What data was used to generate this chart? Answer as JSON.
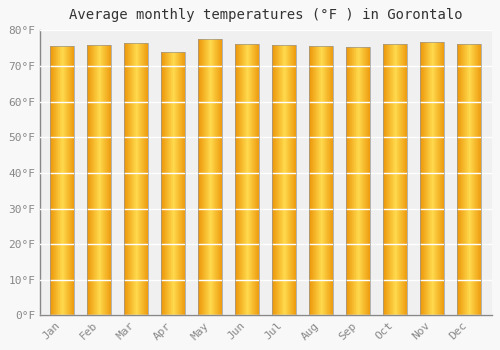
{
  "title": "Average monthly temperatures (°F ) in Gorontalo",
  "months": [
    "Jan",
    "Feb",
    "Mar",
    "Apr",
    "May",
    "Jun",
    "Jul",
    "Aug",
    "Sep",
    "Oct",
    "Nov",
    "Dec"
  ],
  "values": [
    75.6,
    76.0,
    76.5,
    74.0,
    77.5,
    76.3,
    76.0,
    75.7,
    75.4,
    76.3,
    76.7,
    76.3
  ],
  "ylim": [
    0,
    80
  ],
  "yticks": [
    0,
    10,
    20,
    30,
    40,
    50,
    60,
    70,
    80
  ],
  "ytick_labels": [
    "0°F",
    "10°F",
    "20°F",
    "30°F",
    "40°F",
    "50°F",
    "60°F",
    "70°F",
    "80°F"
  ],
  "background_color": "#f8f8f8",
  "plot_bg_color": "#f0f0f0",
  "grid_color": "#ffffff",
  "bar_color_left": "#E8960A",
  "bar_color_mid": "#FFD04A",
  "bar_color_right": "#FFC830",
  "bar_edge_color": "#999999",
  "title_fontsize": 10,
  "tick_fontsize": 8,
  "bar_width": 0.65
}
